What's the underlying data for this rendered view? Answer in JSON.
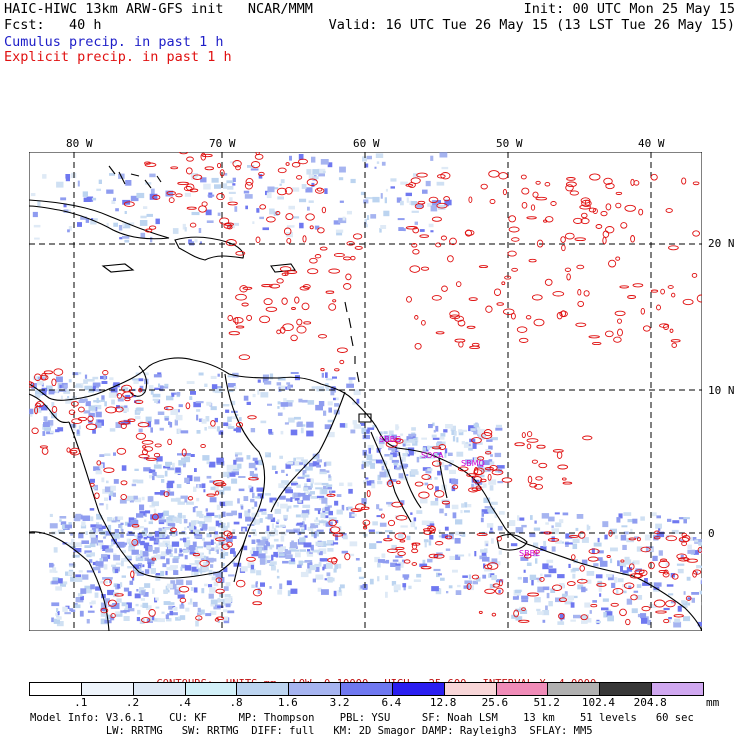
{
  "header": {
    "line1_left": "HAIC-HIWC 13km ARW-GFS init   NCAR/MMM",
    "line1_right": "Init: 00 UTC Mon 25 May 15",
    "line2_left": "Fcst:   40 h",
    "line2_right": "Valid: 16 UTC Tue 26 May 15 (13 LST Tue 26 May 15)",
    "cumulus_label": "Cumulus precip. in past 1 h",
    "explicit_label": "Explicit precip. in past 1 h"
  },
  "map": {
    "lon_labels": [
      "80 W",
      "70 W",
      "60 W",
      "50 W",
      "40 W"
    ],
    "lat_labels": [
      "20 N",
      "10 N",
      "0"
    ],
    "place_labels": [
      "SBBG",
      "SOCA",
      "SBMQ",
      "SBBE"
    ],
    "colors": {
      "coast": "#000000",
      "cumulus": "#5a64e6",
      "explicit": "#e01010",
      "grid": "#000000"
    }
  },
  "contours": {
    "units": "CONTOURS:  UNITS=mm",
    "low": "LOW= 0.10000",
    "high": "HIGH=  25.600",
    "interval": "INTERVAL=X  4.0000"
  },
  "colorbar": {
    "unit": "mm",
    "labels": [
      ".1",
      ".2",
      ".4",
      ".8",
      "1.6",
      "3.2",
      "6.4",
      "12.8",
      "25.6",
      "51.2",
      "102.4",
      "204.8"
    ],
    "colors": [
      "#ffffff",
      "#eef4fb",
      "#dfeaf6",
      "#d2f0f8",
      "#bcd4f0",
      "#a6b4f0",
      "#6f78f0",
      "#2a1ef0",
      "#f8d6d8",
      "#f08cb8",
      "#b0b0b0",
      "#383838",
      "#d0a8f0"
    ]
  },
  "footer": {
    "line1": "Model Info: V3.6.1    CU: KF     MP: Thompson    PBL: YSU     SF: Noah LSM    13 km    51 levels   60 sec",
    "line2": "            LW: RRTMG   SW: RRTMG  DIFF: full   KM: 2D Smagor DAMP: Rayleigh3  SFLAY: MM5"
  }
}
